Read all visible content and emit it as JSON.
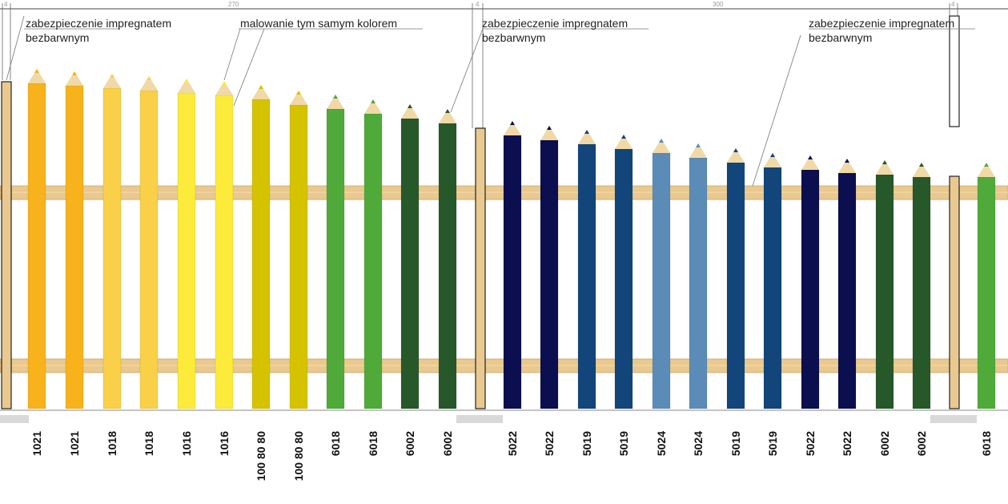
{
  "callouts": {
    "left_top_line1": "zabezpieczenie impregnatem",
    "left_top_line2": "bezbarwnym",
    "middle_top": "malowanie tym samym kolorem",
    "center_top_line1": "zabezpieczenie impregnatem",
    "center_top_line2": "bezbarwnym",
    "right_top_line1": "zabezpieczenie impregnatem",
    "right_top_line2": "bezbarwnym"
  },
  "dimensions": {
    "left_post": "4",
    "section_1": "270",
    "middle_post": "4",
    "section_2": "300",
    "right_post": "4"
  },
  "colors": {
    "wood": "#E9C98F",
    "wood_shadow": "#D8B37A",
    "pencil_tip_wood": "#F0D9A6",
    "ground_post": "#D9D9D9",
    "1021": "#F8B21C",
    "1018": "#F9D048",
    "1016": "#FCEB3A",
    "100 80 80": "#D6C300",
    "6018": "#4FAA3A",
    "6002": "#27582A",
    "5022": "#0B0F4F",
    "5019": "#12467A",
    "5024": "#5B8CB7"
  },
  "pencils": [
    {
      "code": "1021",
      "color_key": "1021"
    },
    {
      "code": "1021",
      "color_key": "1021"
    },
    {
      "code": "1018",
      "color_key": "1018"
    },
    {
      "code": "1018",
      "color_key": "1018"
    },
    {
      "code": "1016",
      "color_key": "1016"
    },
    {
      "code": "1016",
      "color_key": "1016"
    },
    {
      "code": "100 80 80",
      "color_key": "100 80 80"
    },
    {
      "code": "100 80 80",
      "color_key": "100 80 80"
    },
    {
      "code": "6018",
      "color_key": "6018"
    },
    {
      "code": "6018",
      "color_key": "6018"
    },
    {
      "code": "6002",
      "color_key": "6002"
    },
    {
      "code": "6002",
      "color_key": "6002"
    },
    {
      "code": "5022",
      "color_key": "5022"
    },
    {
      "code": "5022",
      "color_key": "5022"
    },
    {
      "code": "5019",
      "color_key": "5019"
    },
    {
      "code": "5019",
      "color_key": "5019"
    },
    {
      "code": "5024",
      "color_key": "5024"
    },
    {
      "code": "5024",
      "color_key": "5024"
    },
    {
      "code": "5019",
      "color_key": "5019"
    },
    {
      "code": "5019",
      "color_key": "5019"
    },
    {
      "code": "5022",
      "color_key": "5022"
    },
    {
      "code": "5022",
      "color_key": "5022"
    },
    {
      "code": "6002",
      "color_key": "6002"
    },
    {
      "code": "6002",
      "color_key": "6002"
    },
    {
      "code": "6018",
      "color_key": "6018"
    }
  ]
}
